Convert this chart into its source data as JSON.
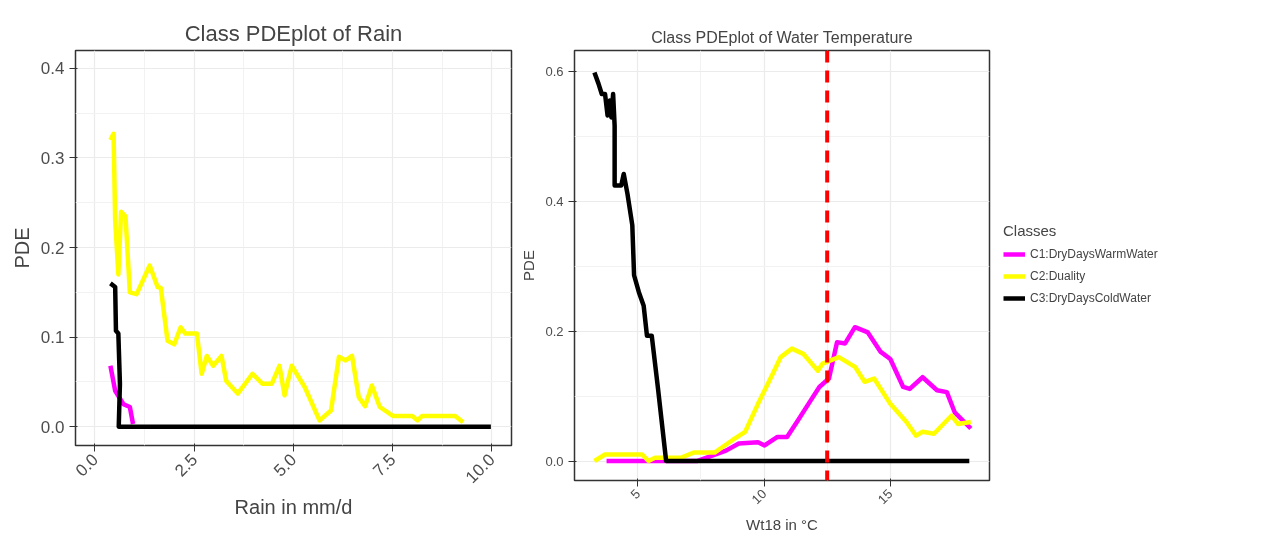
{
  "chart_data": [
    {
      "type": "line",
      "title": "Class PDEplot of Rain",
      "xlabel": "Rain in mm/d",
      "ylabel": "PDE",
      "xlim": [
        -0.49,
        10.5
      ],
      "ylim": [
        -0.021,
        0.42
      ],
      "xticks": [
        {
          "value": 0,
          "label": "0.0"
        },
        {
          "value": 2.5,
          "label": "2.5"
        },
        {
          "value": 5,
          "label": "5.0"
        },
        {
          "value": 7.5,
          "label": "7.5"
        },
        {
          "value": 10,
          "label": "10.0"
        }
      ],
      "yticks": [
        {
          "value": 0,
          "label": "0.0"
        },
        0.1,
        0.2,
        0.3,
        0.4
      ],
      "grid": true,
      "series": [
        {
          "color": "#ff00ff",
          "x": [
            0.39,
            0.51,
            0.72,
            0.88,
            0.96
          ],
          "values": [
            0.068,
            0.04,
            0.025,
            0.022,
            0.003
          ]
        },
        {
          "color": "#ffff00",
          "x": [
            0.39,
            0.47,
            0.51,
            0.59,
            0.66,
            0.77,
            0.88,
            1.05,
            1.38,
            1.58,
            1.66,
            1.83,
            2.0,
            2.16,
            2.28,
            2.57,
            2.69,
            2.82,
            2.98,
            3.19,
            3.31,
            3.6,
            3.97,
            4.22,
            4.46,
            4.65,
            4.78,
            4.96,
            5.29,
            5.66,
            5.95,
            6.15,
            6.32,
            6.48,
            6.65,
            6.81,
            6.98,
            7.18,
            7.51,
            8.0,
            8.13,
            8.25,
            9.08,
            9.28
          ],
          "values": [
            0.32,
            0.327,
            0.23,
            0.17,
            0.24,
            0.235,
            0.15,
            0.148,
            0.18,
            0.156,
            0.155,
            0.096,
            0.092,
            0.111,
            0.104,
            0.104,
            0.059,
            0.079,
            0.068,
            0.079,
            0.051,
            0.037,
            0.059,
            0.048,
            0.048,
            0.068,
            0.035,
            0.068,
            0.044,
            0.007,
            0.018,
            0.078,
            0.074,
            0.079,
            0.033,
            0.023,
            0.046,
            0.022,
            0.012,
            0.012,
            0.007,
            0.012,
            0.012,
            0.005
          ]
        },
        {
          "color": "#000000",
          "x": [
            0.39,
            0.51,
            0.53,
            0.59,
            0.63,
            0.6,
            9.98
          ],
          "values": [
            0.16,
            0.156,
            0.107,
            0.104,
            0.048,
            0.0,
            0.0
          ]
        }
      ]
    },
    {
      "type": "line",
      "title": "Class PDEplot of Water Temperature",
      "xlabel": "Wt18 in °C",
      "ylabel": "PDE",
      "xlim": [
        2.49,
        18.93
      ],
      "ylim": [
        -0.03,
        0.632
      ],
      "xticks": [
        5,
        10,
        15
      ],
      "yticks": [
        {
          "value": 0,
          "label": "0.0"
        },
        0.2,
        0.4,
        0.6
      ],
      "grid": true,
      "legend": "right",
      "legend_title": "Classes",
      "ref_lines": [
        {
          "axis": "x",
          "value": 12.5,
          "color": "#ff0000",
          "line_style": "dashed"
        }
      ],
      "series": [
        {
          "name": "C1:DryDaysWarmWater",
          "color": "#ff00ff",
          "x": [
            3.76,
            5.17,
            7.34,
            8.49,
            9.0,
            9.76,
            10.02,
            10.53,
            10.91,
            11.3,
            11.81,
            12.19,
            12.57,
            12.89,
            13.21,
            13.6,
            14.11,
            14.62,
            15.0,
            15.51,
            15.77,
            16.28,
            16.85,
            17.24,
            17.55,
            18.19
          ],
          "values": [
            0,
            0,
            0,
            0.016,
            0.027,
            0.029,
            0.024,
            0.037,
            0.037,
            0.06,
            0.091,
            0.114,
            0.127,
            0.183,
            0.181,
            0.206,
            0.198,
            0.168,
            0.157,
            0.114,
            0.111,
            0.129,
            0.109,
            0.106,
            0.075,
            0.05
          ]
        },
        {
          "name": "C2:Duality",
          "color": "#ffff00",
          "x": [
            3.28,
            3.7,
            5.17,
            5.42,
            5.68,
            6.7,
            7.21,
            8.04,
            8.74,
            9.25,
            9.76,
            10.34,
            10.66,
            11.1,
            11.55,
            12.13,
            12.32,
            12.96,
            13.6,
            13.98,
            14.36,
            15.0,
            15.64,
            16.02,
            16.28,
            16.73,
            17.43,
            17.68,
            18.19
          ],
          "values": [
            0,
            0.01,
            0.01,
            0,
            0.005,
            0.005,
            0.013,
            0.013,
            0.032,
            0.045,
            0.088,
            0.134,
            0.16,
            0.173,
            0.165,
            0.139,
            0.15,
            0.16,
            0.145,
            0.122,
            0.127,
            0.088,
            0.06,
            0.039,
            0.045,
            0.042,
            0.07,
            0.057,
            0.06
          ]
        },
        {
          "name": "C3:DryDaysColdWater",
          "color": "#000000",
          "x": [
            3.28,
            3.44,
            3.57,
            3.7,
            3.8,
            3.89,
            3.95,
            4.02,
            4.08,
            4.08,
            4.34,
            4.44,
            4.59,
            4.78,
            4.85,
            5.04,
            5.23,
            5.36,
            5.55,
            5.8,
            6.12,
            18.13
          ],
          "values": [
            0.598,
            0.581,
            0.565,
            0.565,
            0.532,
            0.555,
            0.529,
            0.565,
            0.516,
            0.424,
            0.424,
            0.442,
            0.411,
            0.363,
            0.286,
            0.26,
            0.239,
            0.193,
            0.193,
            0.111,
            0,
            0
          ]
        }
      ]
    }
  ]
}
